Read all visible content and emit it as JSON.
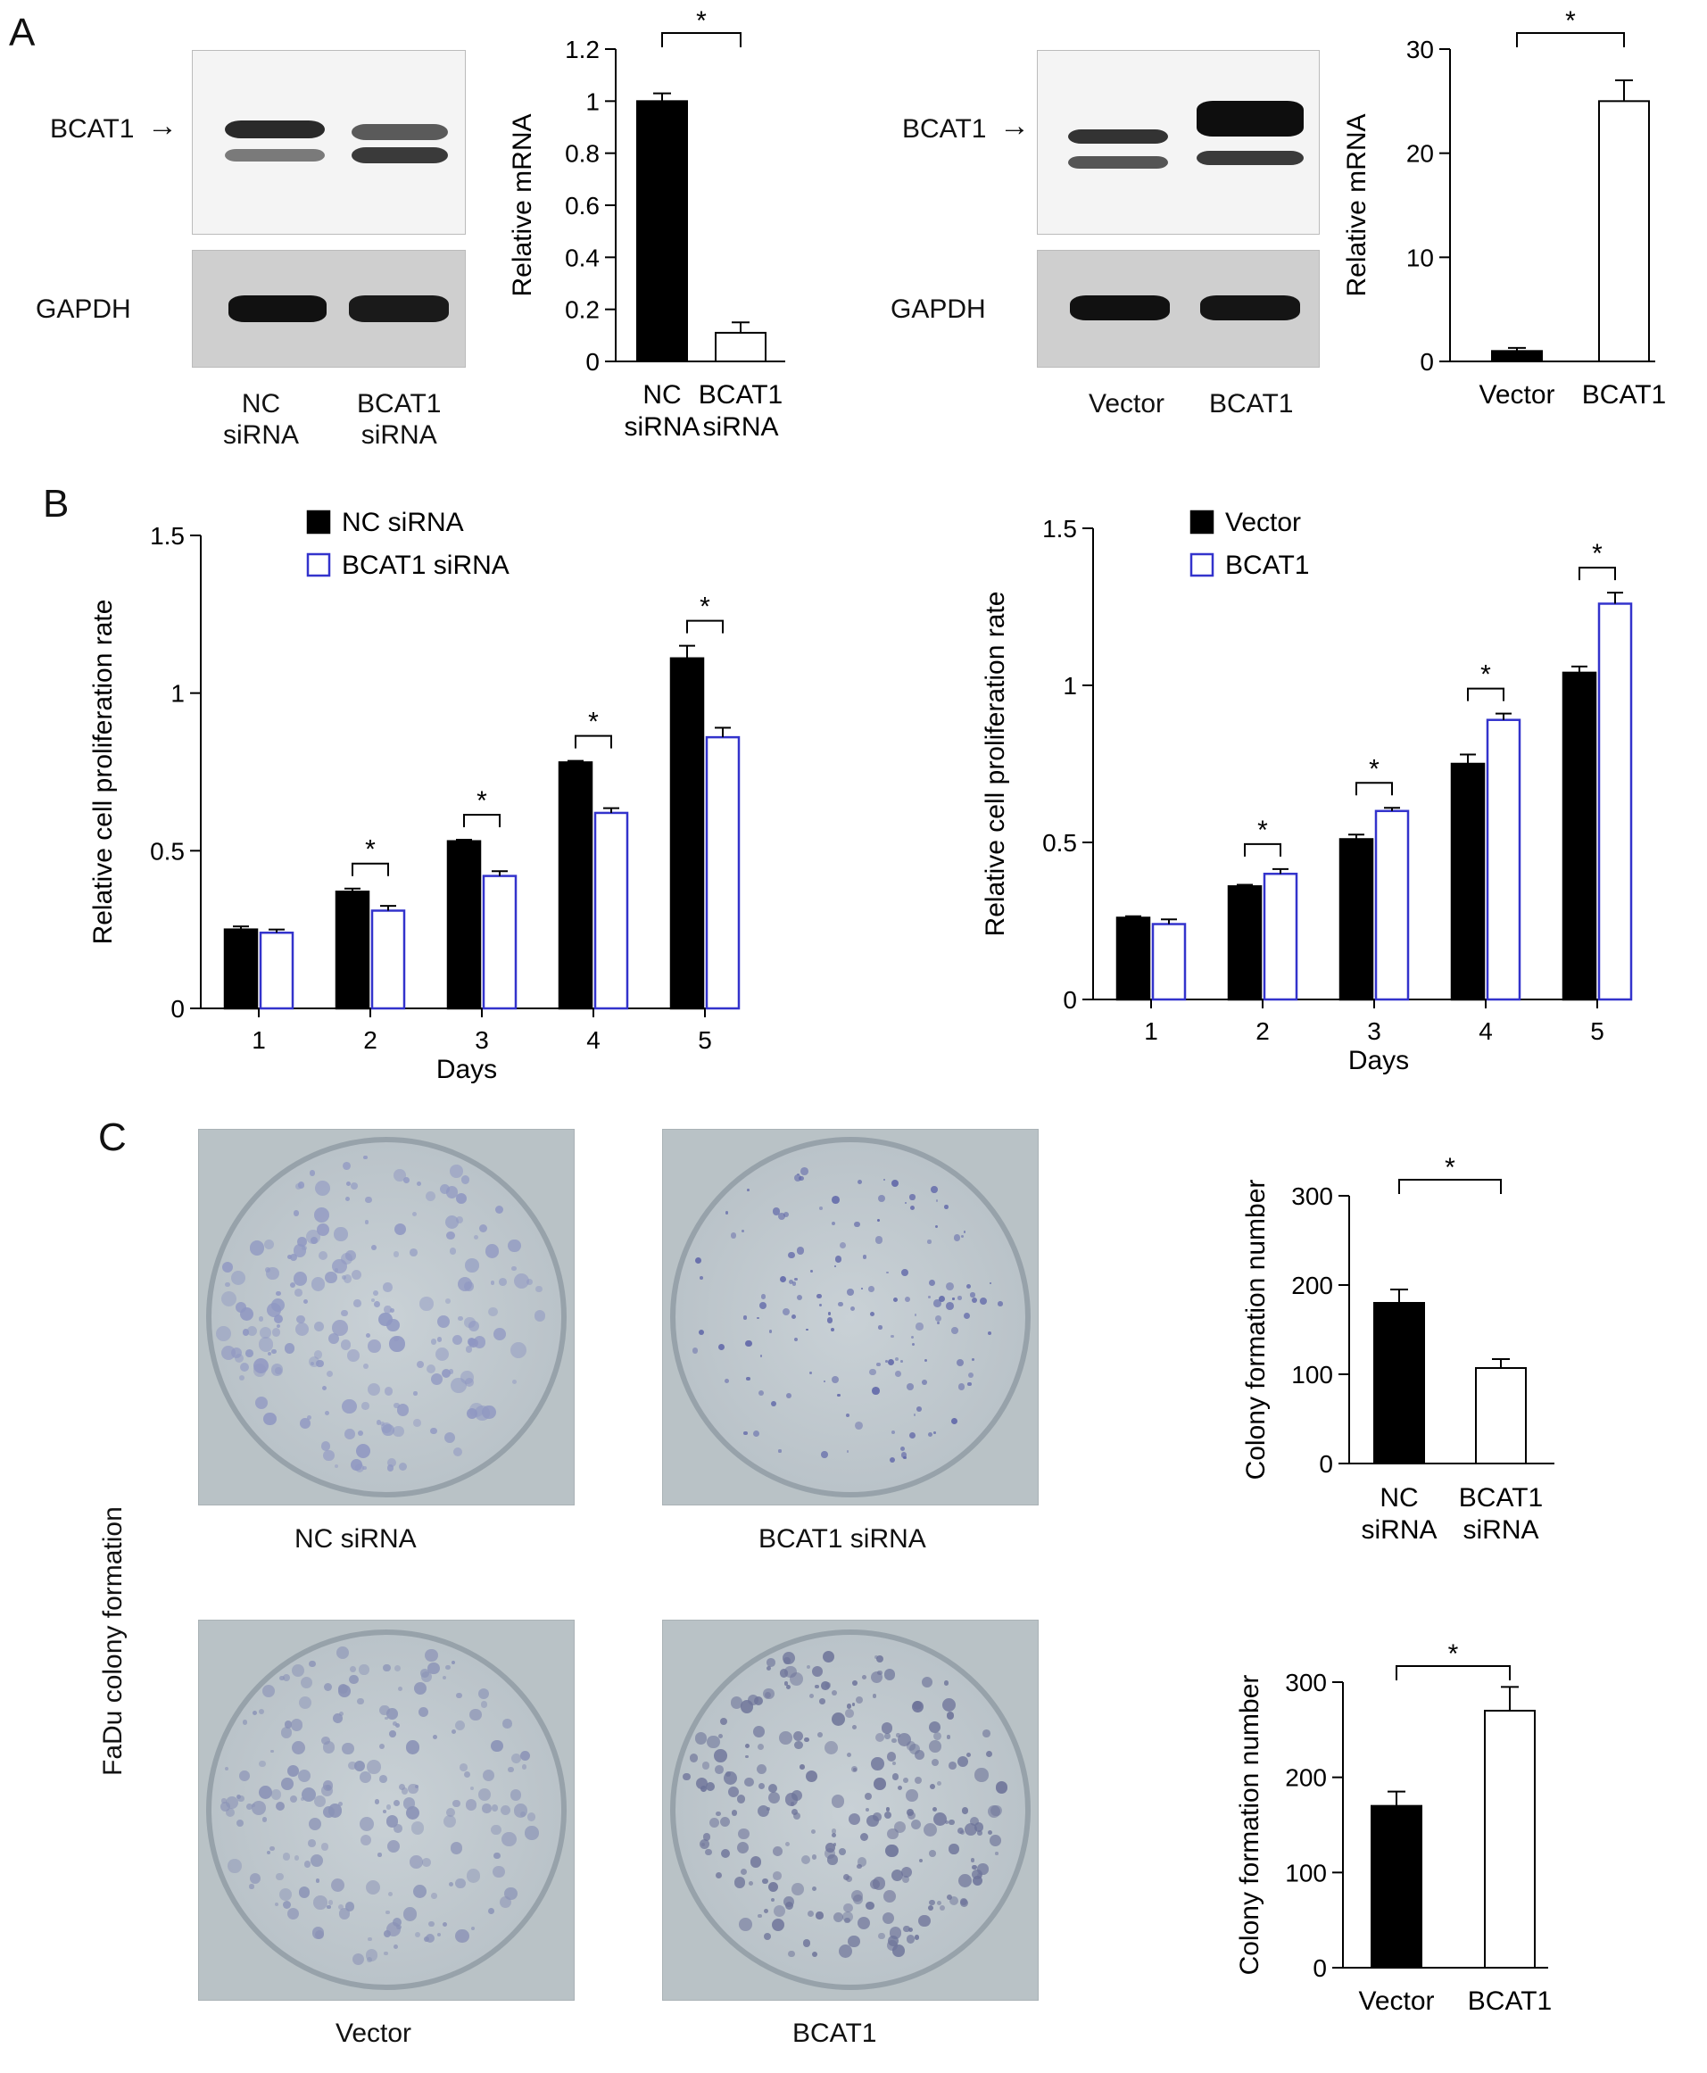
{
  "panels": {
    "A": "A",
    "B": "B",
    "C": "C"
  },
  "blots": {
    "left": {
      "band_label": "BCAT1",
      "loading_label": "GAPDH",
      "lanes": [
        "NC\nsiRNA",
        "BCAT1\nsiRNA"
      ]
    },
    "right": {
      "band_label": "BCAT1",
      "loading_label": "GAPDH",
      "lanes": [
        "Vector",
        "BCAT1"
      ]
    }
  },
  "dishes": {
    "ylabel": "FaDu colony formation",
    "items": [
      {
        "label": "NC siRNA",
        "density": 0.75,
        "colonySize": 1.0,
        "tint": "#8f97c2"
      },
      {
        "label": "BCAT1 siRNA",
        "density": 0.55,
        "colonySize": 0.5,
        "tint": "#5f66a8"
      },
      {
        "label": "Vector",
        "density": 0.75,
        "colonySize": 0.9,
        "tint": "#8a92b6"
      },
      {
        "label": "BCAT1",
        "density": 0.95,
        "colonySize": 0.85,
        "tint": "#6d7399"
      }
    ]
  },
  "colors": {
    "filled": "#000000",
    "open_edge_blue": "#3333cc",
    "open_edge_black": "#000000"
  },
  "chart_data": [
    {
      "id": "a1",
      "type": "bar",
      "categories": [
        "NC\nsiRNA",
        "BCAT1\nsiRNA"
      ],
      "values": [
        1.0,
        0.11
      ],
      "errors": [
        0.03,
        0.04
      ],
      "ylabel": "Relative mRNA",
      "ylim": [
        0,
        1.2
      ],
      "yticks": [
        0,
        0.2,
        0.4,
        0.6,
        0.8,
        1,
        1.2
      ],
      "styles": [
        "filled",
        "open"
      ],
      "significance": [
        {
          "from": 0,
          "to": 1,
          "label": "*"
        }
      ]
    },
    {
      "id": "a2",
      "type": "bar",
      "categories": [
        "Vector",
        "BCAT1"
      ],
      "values": [
        1.0,
        25.0
      ],
      "errors": [
        0.3,
        2.0
      ],
      "ylabel": "Relative mRNA",
      "ylim": [
        0,
        30
      ],
      "yticks": [
        0,
        10,
        20,
        30
      ],
      "styles": [
        "filled",
        "open"
      ],
      "significance": [
        {
          "from": 0,
          "to": 1,
          "label": "*"
        }
      ]
    },
    {
      "id": "b1",
      "type": "bar",
      "categories": [
        "1",
        "2",
        "3",
        "4",
        "5"
      ],
      "series": [
        {
          "name": "NC siRNA",
          "values": [
            0.25,
            0.37,
            0.53,
            0.78,
            1.11
          ],
          "errors": [
            0.01,
            0.01,
            0.005,
            0.005,
            0.04
          ]
        },
        {
          "name": "BCAT1 siRNA",
          "values": [
            0.24,
            0.31,
            0.42,
            0.62,
            0.86
          ],
          "errors": [
            0.01,
            0.015,
            0.015,
            0.015,
            0.03
          ]
        }
      ],
      "xlabel": "Days",
      "ylabel": "Relative cell proliferation rate",
      "ylim": [
        0,
        1.5
      ],
      "yticks": [
        0,
        0.5,
        1,
        1.5
      ],
      "significant_days": [
        "2",
        "3",
        "4",
        "5"
      ],
      "star": "*"
    },
    {
      "id": "b2",
      "type": "bar",
      "categories": [
        "1",
        "2",
        "3",
        "4",
        "5"
      ],
      "series": [
        {
          "name": "Vector",
          "values": [
            0.26,
            0.36,
            0.51,
            0.75,
            1.04
          ],
          "errors": [
            0.005,
            0.005,
            0.015,
            0.03,
            0.02
          ]
        },
        {
          "name": "BCAT1",
          "values": [
            0.24,
            0.4,
            0.6,
            0.89,
            1.26
          ],
          "errors": [
            0.015,
            0.015,
            0.01,
            0.02,
            0.035
          ]
        }
      ],
      "xlabel": "Days",
      "ylabel": "Relative cell proliferation rate",
      "ylim": [
        0,
        1.5
      ],
      "yticks": [
        0,
        0.5,
        1,
        1.5
      ],
      "significant_days": [
        "2",
        "3",
        "4",
        "5"
      ],
      "star": "*"
    },
    {
      "id": "c1",
      "type": "bar",
      "categories": [
        "NC\nsiRNA",
        "BCAT1\nsiRNA"
      ],
      "values": [
        180,
        107
      ],
      "errors": [
        15,
        10
      ],
      "ylabel": "Colony formation number",
      "ylim": [
        0,
        300
      ],
      "yticks": [
        0,
        100,
        200,
        300
      ],
      "styles": [
        "filled",
        "open"
      ],
      "significance": [
        {
          "from": 0,
          "to": 1,
          "label": "*"
        }
      ]
    },
    {
      "id": "c2",
      "type": "bar",
      "categories": [
        "Vector",
        "BCAT1"
      ],
      "values": [
        170,
        270
      ],
      "errors": [
        15,
        25
      ],
      "ylabel": "Colony formation number",
      "ylim": [
        0,
        300
      ],
      "yticks": [
        0,
        100,
        200,
        300
      ],
      "styles": [
        "filled",
        "open"
      ],
      "significance": [
        {
          "from": 0,
          "to": 1,
          "label": "*"
        }
      ]
    }
  ]
}
